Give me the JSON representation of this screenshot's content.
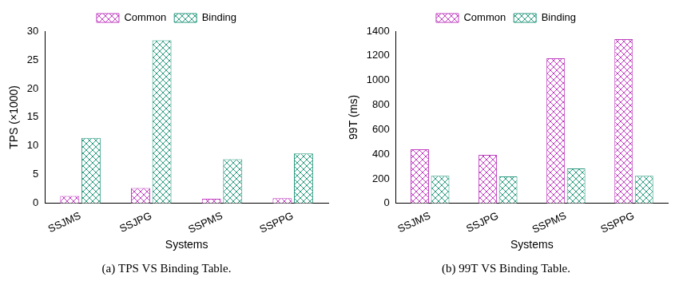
{
  "chart_data": [
    {
      "type": "bar",
      "title": "(a) TPS VS Binding Table.",
      "x_label": "Systems",
      "y_label": "TPS (×1000)",
      "categories": [
        "SSJMS",
        "SSJPG",
        "SSPMS",
        "SSPPG"
      ],
      "series": [
        {
          "name": "Common",
          "color": "#c040c0",
          "values": [
            1.3,
            2.7,
            0.8,
            0.9
          ]
        },
        {
          "name": "Binding",
          "color": "#2a9a80",
          "values": [
            11.4,
            28.4,
            7.7,
            8.7
          ]
        }
      ],
      "ylim": [
        0,
        30
      ],
      "yticks": [
        0,
        5,
        10,
        15,
        20,
        25,
        30
      ],
      "grid": false,
      "legend": "top"
    },
    {
      "type": "bar",
      "title": "(b) 99T VS Binding Table.",
      "x_label": "Systems",
      "y_label": "99T (ms)",
      "categories": [
        "SSJMS",
        "SSJPG",
        "SSPMS",
        "SSPPG"
      ],
      "series": [
        {
          "name": "Common",
          "color": "#c040c0",
          "values": [
            440,
            395,
            1180,
            1335
          ]
        },
        {
          "name": "Binding",
          "color": "#2a9a80",
          "values": [
            225,
            220,
            285,
            225
          ]
        }
      ],
      "ylim": [
        0,
        1400
      ],
      "yticks": [
        0,
        200,
        400,
        600,
        800,
        1000,
        1200,
        1400
      ],
      "grid": false,
      "legend": "top"
    }
  ]
}
